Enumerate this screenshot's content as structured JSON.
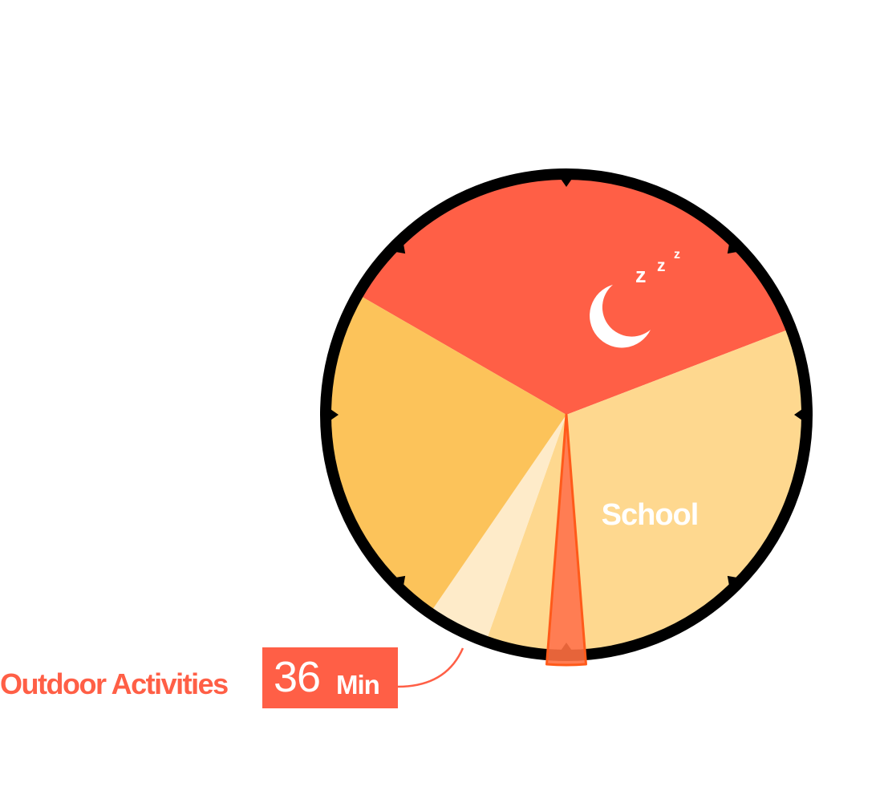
{
  "chart_data": {
    "type": "pie",
    "unit": "Min",
    "slices": [
      {
        "name": "",
        "value": 516,
        "color": "#ff5f46",
        "icon": "moon-sleep-icon"
      },
      {
        "name": "School",
        "value": 426,
        "color": "#fed88f"
      },
      {
        "name": "Outdoor Activities",
        "value": 36,
        "color": "#ff6f40",
        "highlight": true
      },
      {
        "name": "",
        "value": 60,
        "color": "#fed88f"
      },
      {
        "name": "",
        "value": 60,
        "color": "#feebc9"
      },
      {
        "name": "",
        "value": 342,
        "color": "#fcc35a"
      }
    ],
    "clock_ticks": 8
  },
  "callout": {
    "label": "Outdoor Activities",
    "value": "36",
    "unit": "Min"
  },
  "labels": {
    "school": "School",
    "sleep": "z z z"
  },
  "colors": {
    "accent": "#ff5f46",
    "ring": "#000000"
  }
}
